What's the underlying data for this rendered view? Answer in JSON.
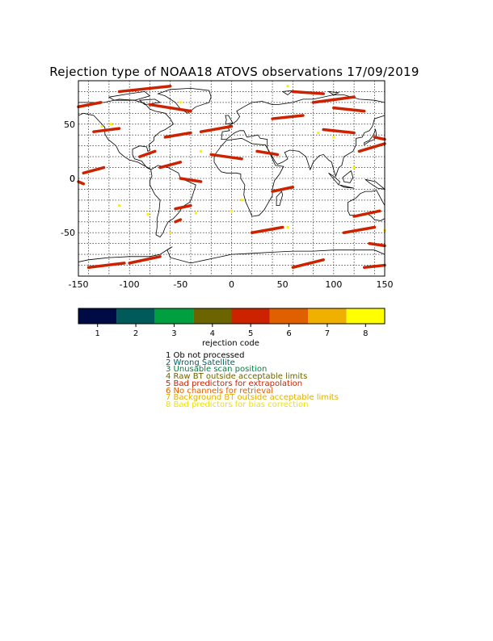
{
  "title": "Rejection type of NOAA18 ATOVS observations 17/09/2019",
  "map": {
    "lon_range": [
      -150,
      150
    ],
    "lat_range": [
      -90,
      90
    ],
    "x_ticks": [
      "-150",
      "-100",
      "-50",
      "0",
      "50",
      "100",
      "150"
    ],
    "y_ticks": [
      "50",
      "0",
      "-50"
    ],
    "grid": "dotted"
  },
  "colorbar": {
    "label": "rejection code",
    "ticks": [
      "1",
      "2",
      "3",
      "4",
      "5",
      "6",
      "7",
      "8"
    ],
    "colors": [
      "#000a44",
      "#005a5a",
      "#00a040",
      "#6b6400",
      "#cc2200",
      "#e06000",
      "#f0b000",
      "#ffff00"
    ]
  },
  "legend": [
    {
      "text": "1 Ob not processed",
      "color": "#000000"
    },
    {
      "text": "2 Wrong Satellite",
      "color": "#006060"
    },
    {
      "text": "3 Unusable scan position",
      "color": "#008040"
    },
    {
      "text": "4 Raw BT outside acceptable limits",
      "color": "#6b6400"
    },
    {
      "text": "5 Bad predictors for extrapolation",
      "color": "#cc2200"
    },
    {
      "text": "6 No channels for retrieval",
      "color": "#e06000"
    },
    {
      "text": "7 Background BT outside acceptable limits",
      "color": "#e0b000"
    },
    {
      "text": "8 Bad predictors for bias correction",
      "color": "#f0e000"
    }
  ]
}
